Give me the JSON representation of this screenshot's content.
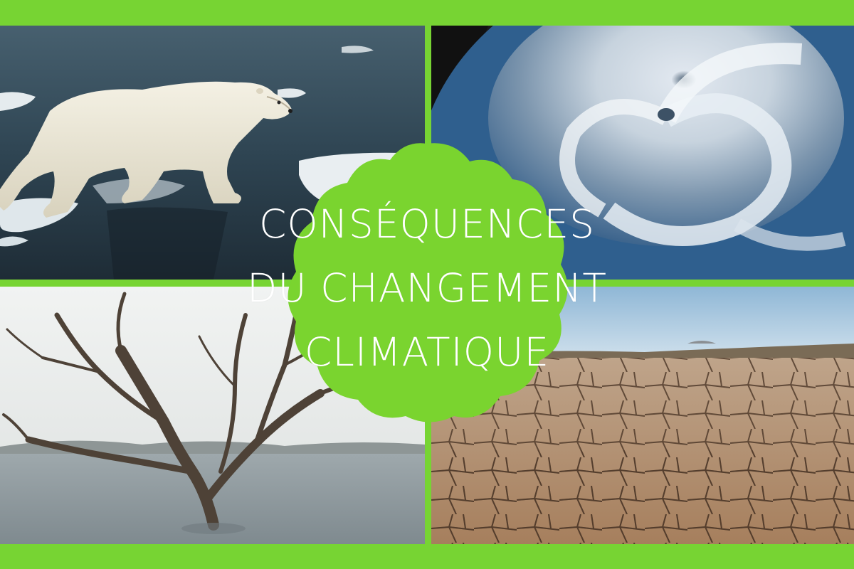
{
  "title": {
    "line1": "CONSÉQUENCES",
    "line2": "DU CHANGEMENT",
    "line3": "CLIMATIQUE"
  },
  "colors": {
    "border_green": "#77d433",
    "badge_green": "#7ad42f",
    "title_text": "#ffffff"
  },
  "photos": [
    {
      "subject": "polar-bear-on-melting-ice"
    },
    {
      "subject": "hurricane-from-space"
    },
    {
      "subject": "dead-tree-in-flood-water"
    },
    {
      "subject": "cracked-dry-earth"
    }
  ]
}
